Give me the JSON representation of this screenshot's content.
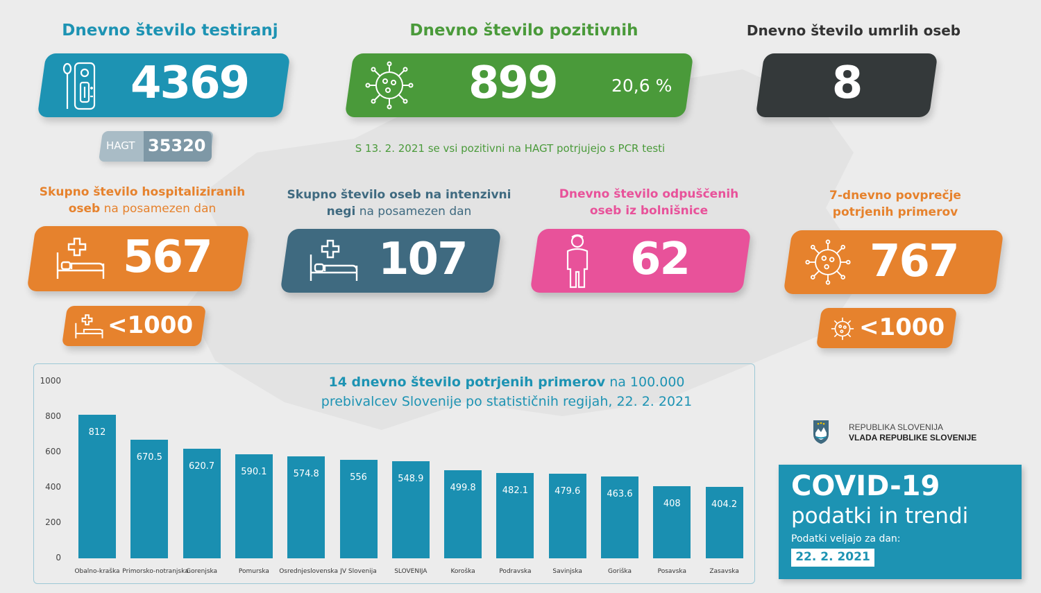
{
  "colors": {
    "blue": "#1d93b3",
    "green": "#4a9a3a",
    "dark": "#34393a",
    "orange": "#e6822d",
    "steel": "#3f6a80",
    "pink": "#e8529a",
    "hagt_light": "#a9bcc6",
    "hagt_dark": "#7e98a6"
  },
  "tests": {
    "heading": "Dnevno število testiranj",
    "value": "4369",
    "icon": "test-kit-icon",
    "hagt_label": "HAGT",
    "hagt_value": "35320"
  },
  "positives": {
    "heading": "Dnevno število pozitivnih",
    "value": "899",
    "percent": "20,6 %",
    "icon": "virus-icon",
    "note": "S 13. 2. 2021 se vsi pozitivni na HAGT potrjujejo s PCR testi"
  },
  "deaths": {
    "heading": "Dnevno število umrlih oseb",
    "value": "8"
  },
  "hospitalized": {
    "heading_bold_1": "Skupno število hospitaliziranih",
    "heading_bold_2": "oseb",
    "heading_light": " na posamezen dan",
    "value": "567",
    "icon": "hospital-bed-icon",
    "threshold": "<1000"
  },
  "icu": {
    "heading_bold_1": "Skupno število oseb na intenzivni",
    "heading_bold_2": "negi",
    "heading_light": " na posamezen dan",
    "value": "107",
    "icon": "hospital-bed-icon"
  },
  "discharged": {
    "heading_1": "Dnevno število odpuščenih",
    "heading_2": "oseb iz bolnišnice",
    "value": "62",
    "icon": "person-icon"
  },
  "avg7": {
    "heading_1": "7-dnevno povprečje",
    "heading_2": "potrjenih primerov",
    "value": "767",
    "icon": "virus-icon",
    "threshold": "<1000"
  },
  "chart_title_bold": "14 dnevno število potrjenih primerov",
  "chart_title_light_1": " na 100.000",
  "chart_title_line2": "prebivalcev Slovenije po statističnih regijah, 22. 2. 2021",
  "chart_data": {
    "type": "bar",
    "categories": [
      "Obalno-kraška",
      "Primorsko-notranjska",
      "Gorenjska",
      "Pomurska",
      "Osrednjeslovenska",
      "JV Slovenija",
      "SLOVENIJA",
      "Koroška",
      "Podravska",
      "Savinjska",
      "Goriška",
      "Posavska",
      "Zasavska"
    ],
    "values": [
      812,
      670.5,
      620.7,
      590.1,
      574.8,
      556,
      548.9,
      499.8,
      482.1,
      479.6,
      463.6,
      408,
      404.2
    ],
    "value_labels": [
      "812",
      "670.5",
      "620.7",
      "590.1",
      "574.8",
      "556",
      "548.9",
      "499.8",
      "482.1",
      "479.6",
      "463.6",
      "408",
      "404.2"
    ],
    "yticks": [
      "0",
      "200",
      "400",
      "600",
      "800",
      "1000"
    ],
    "ylim": [
      0,
      1000
    ]
  },
  "gov": {
    "line1": "REPUBLIKA SLOVENIJA",
    "line2": "VLADA REPUBLIKE SLOVENIJE",
    "icon": "coat-of-arms-icon"
  },
  "covid": {
    "title": "COVID-19",
    "subtitle": "podatki in trendi",
    "date_label": "Podatki veljajo za dan:",
    "date": "22. 2. 2021"
  }
}
